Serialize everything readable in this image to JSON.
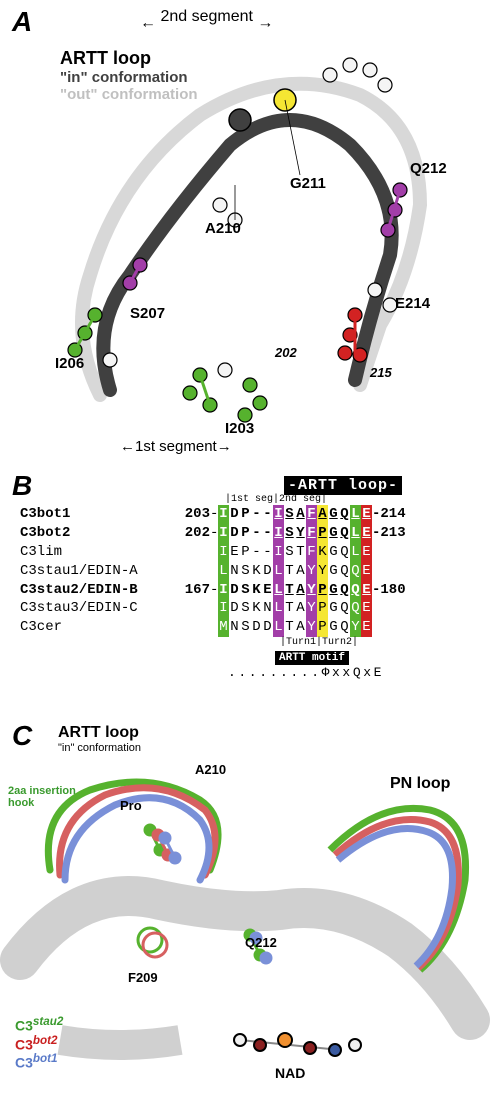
{
  "panelA": {
    "label": "A",
    "title_artt": "ARTT loop",
    "conf_in": "\"in\" conformation",
    "conf_out": "\"out\" conformation",
    "segment2": "2nd segment",
    "segment1": "1st segment",
    "residues": {
      "I206": "I206",
      "S207": "S207",
      "A210": "A210",
      "G211": "G211",
      "Q212": "Q212",
      "I203": "I203",
      "E214": "E214",
      "n202": "202",
      "n215": "215"
    },
    "colors": {
      "in_backbone": "#404040",
      "out_backbone": "#d8d8d8",
      "green": "#56b22e",
      "purple": "#a23ea8",
      "yellow": "#f5e633",
      "red": "#d22222",
      "white_atom": "#f5f5f5",
      "outline": "#000000"
    }
  },
  "panelB": {
    "label": "B",
    "header_artt": "-ARTT loop-",
    "subheader_segs": "|1st seg|2nd seg|",
    "subheader_turns": "|Turn1|Turn2|",
    "header_motif": "ARTT motif",
    "consensus": ".........ΦxxQxE",
    "col_colors": {
      "0": "#56b22e",
      "5": "#a23ea8",
      "8": "#a23ea8",
      "9": "#f5e633",
      "12": "#56b22e",
      "13": "#d22222"
    },
    "rows": [
      {
        "name": "C3bot1",
        "bold": true,
        "start": "203",
        "seq": "IDP--ISAFAGQLE",
        "end": "-214",
        "underline_bold": true
      },
      {
        "name": "C3bot2",
        "bold": true,
        "start": "202",
        "seq": "IDP--ISYFPGQLE",
        "end": "-213",
        "underline_bold": true
      },
      {
        "name": "C3lim",
        "bold": false,
        "start": "",
        "seq": "IEP--ISTFKGQLE",
        "end": "",
        "underline_bold": false
      },
      {
        "name": "C3stau1/EDIN-A",
        "bold": false,
        "start": "",
        "seq": "LNSKDLTAYYGQQE",
        "end": "",
        "underline_bold": false
      },
      {
        "name": "C3stau2/EDIN-B",
        "bold": true,
        "start": "167",
        "seq": "IDSKELTAYPGQQE",
        "end": "-180",
        "underline_bold": true
      },
      {
        "name": "C3stau3/EDIN-C",
        "bold": false,
        "start": "",
        "seq": "IDSKNLTAYPGQQE",
        "end": "",
        "underline_bold": false
      },
      {
        "name": "C3cer",
        "bold": false,
        "start": "",
        "seq": "MNSDDLTAYPGQYE",
        "end": "",
        "underline_bold": false
      }
    ]
  },
  "panelC": {
    "label": "C",
    "title_artt": "ARTT loop",
    "conf_in": "\"in\" conformation",
    "title_pn": "PN loop",
    "hook_label": "2aa insertion\nhook",
    "residues": {
      "A210": "A210",
      "Pro": "Pro",
      "Q212": "Q212",
      "F209": "F209",
      "NAD": "NAD"
    },
    "legend": {
      "stau2": "C3stau2",
      "bot2": "C3bot2",
      "bot1": "C3bot1"
    },
    "colors": {
      "stau2": "#56b22e",
      "bot2": "#d66060",
      "bot1": "#7a90d8",
      "ribbon": "#d0d0d0",
      "nad_c": "#f0f0f0",
      "nad_o": "#8a2020",
      "nad_n": "#3a5aa0",
      "nad_p": "#f09030"
    }
  }
}
